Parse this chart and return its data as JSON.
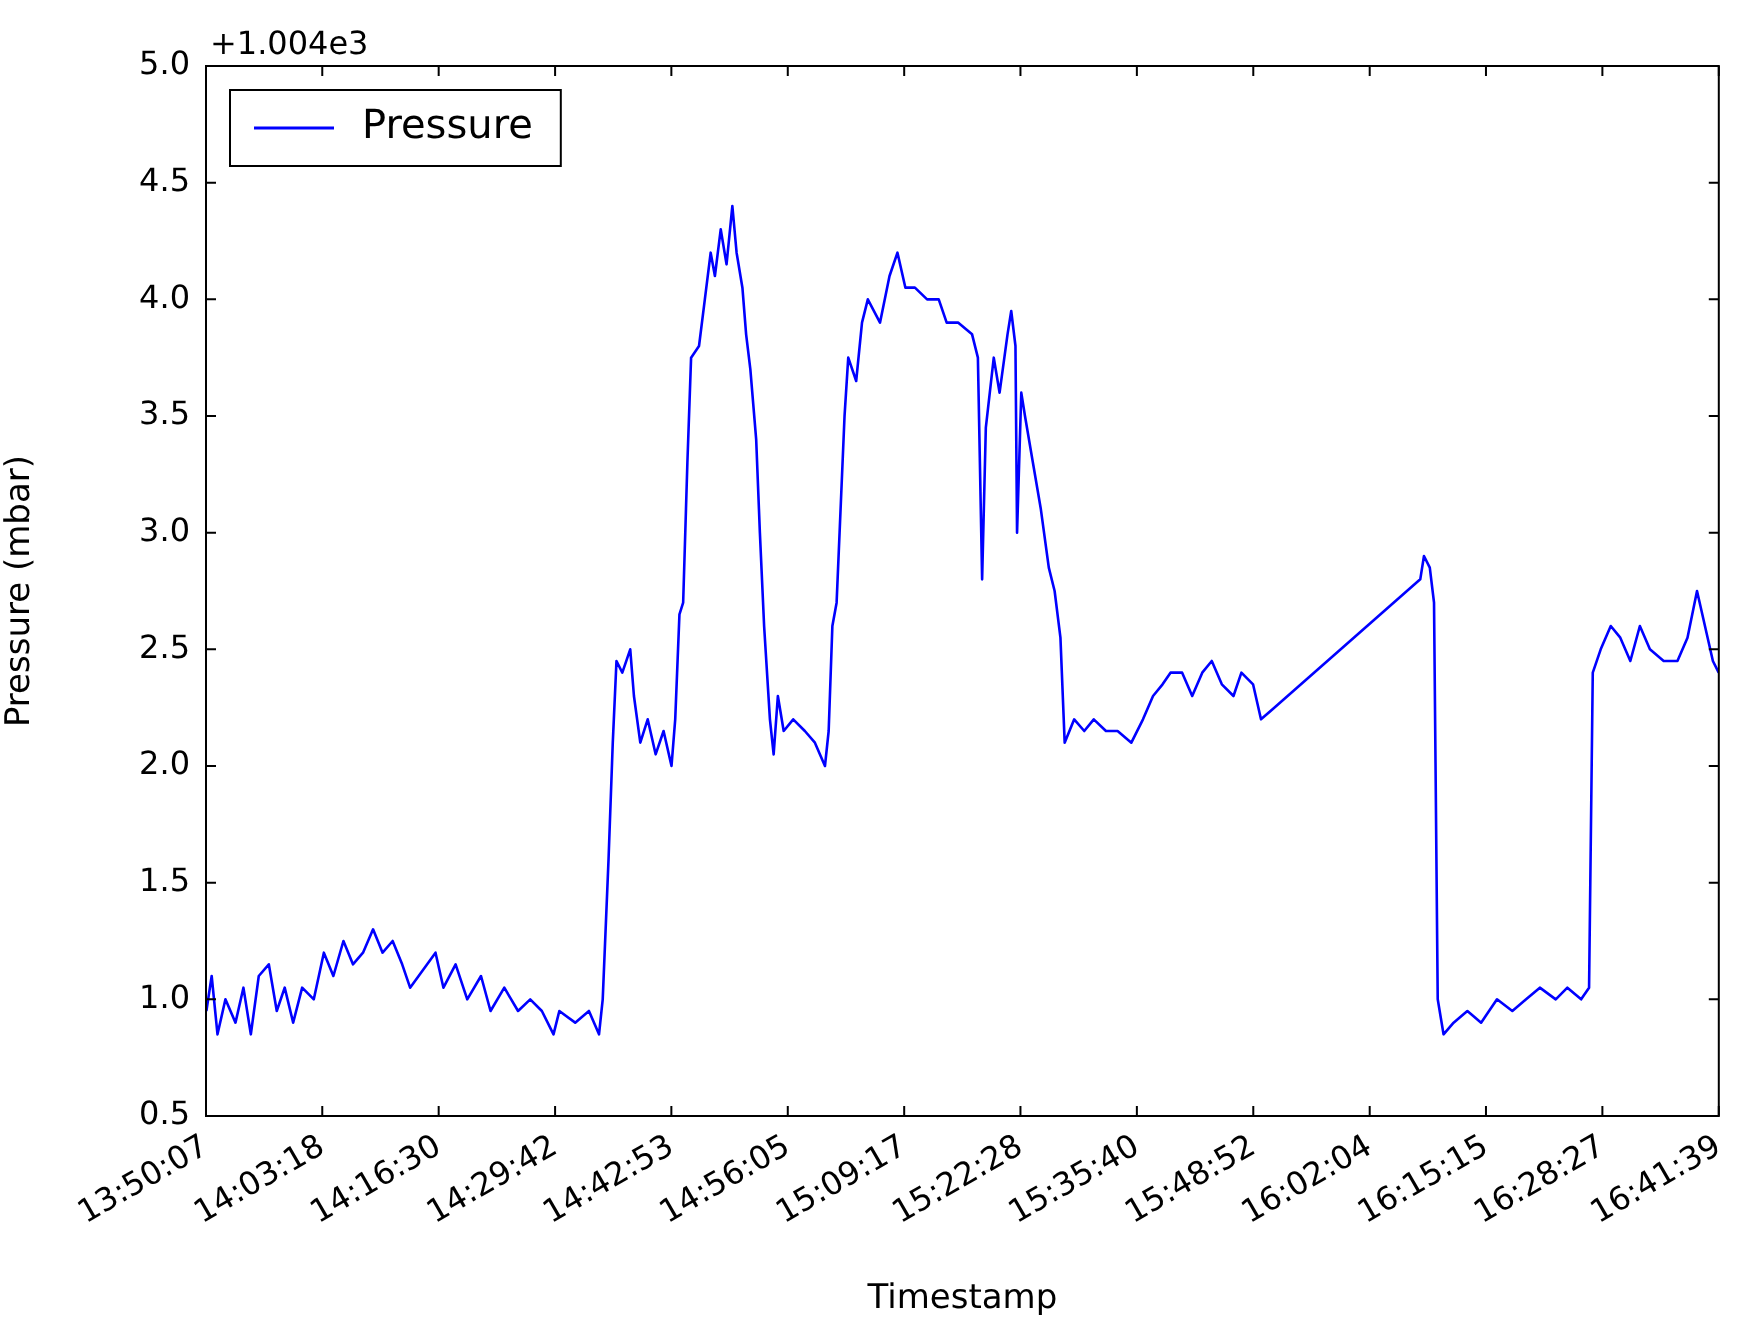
{
  "chart_data": {
    "type": "line",
    "xlabel": "Timestamp",
    "ylabel": "Pressure (mbar)",
    "annotations": [
      "+1.004e3"
    ],
    "xlim": [
      13.83528,
      16.69417
    ],
    "ylim": [
      0.5,
      5.0
    ],
    "xticks": [
      {
        "value": 13.83528,
        "label": "13:50:07"
      },
      {
        "value": 14.055,
        "label": "14:03:18"
      },
      {
        "value": 14.275,
        "label": "14:16:30"
      },
      {
        "value": 14.495,
        "label": "14:29:42"
      },
      {
        "value": 14.71472,
        "label": "14:42:53"
      },
      {
        "value": 14.93472,
        "label": "14:56:05"
      },
      {
        "value": 15.15472,
        "label": "15:09:17"
      },
      {
        "value": 15.37444,
        "label": "15:22:28"
      },
      {
        "value": 15.59444,
        "label": "15:35:40"
      },
      {
        "value": 15.81444,
        "label": "15:48:52"
      },
      {
        "value": 16.03444,
        "label": "16:02:04"
      },
      {
        "value": 16.25417,
        "label": "16:15:15"
      },
      {
        "value": 16.47417,
        "label": "16:28:27"
      },
      {
        "value": 16.69417,
        "label": "16:41:39"
      }
    ],
    "yticks": [
      {
        "value": 0.5,
        "label": "0.5"
      },
      {
        "value": 1,
        "label": "1.0"
      },
      {
        "value": 1.5,
        "label": "1.5"
      },
      {
        "value": 2,
        "label": "2.0"
      },
      {
        "value": 2.5,
        "label": "2.5"
      },
      {
        "value": 3,
        "label": "3.0"
      },
      {
        "value": 3.5,
        "label": "3.5"
      },
      {
        "value": 4,
        "label": "4.0"
      },
      {
        "value": 4.5,
        "label": "4.5"
      },
      {
        "value": 5,
        "label": "5.0"
      }
    ],
    "grid": false,
    "legend": "top left",
    "marker": "none",
    "line_style": "solid",
    "x": [
      13.836,
      13.846,
      13.857,
      13.872,
      13.891,
      13.906,
      13.92,
      13.935,
      13.954,
      13.969,
      13.984,
      14.0,
      14.017,
      14.039,
      14.058,
      14.076,
      14.095,
      14.113,
      14.132,
      14.151,
      14.169,
      14.188,
      14.206,
      14.221,
      14.269,
      14.284,
      14.307,
      14.329,
      14.355,
      14.373,
      14.399,
      14.425,
      14.448,
      14.47,
      14.492,
      14.503,
      14.533,
      14.559,
      14.578,
      14.585,
      14.596,
      14.604,
      14.611,
      14.622,
      14.637,
      14.644,
      14.656,
      14.67,
      14.685,
      14.7,
      14.715,
      14.722,
      14.73,
      14.737,
      14.745,
      14.752,
      14.767,
      14.778,
      14.789,
      14.797,
      14.808,
      14.819,
      14.83,
      14.838,
      14.849,
      14.856,
      14.864,
      14.875,
      14.882,
      14.89,
      14.901,
      14.908,
      14.916,
      14.927,
      14.945,
      14.967,
      14.986,
      15.005,
      15.012,
      15.019,
      15.027,
      15.042,
      15.049,
      15.064,
      15.075,
      15.086,
      15.109,
      15.127,
      15.142,
      15.157,
      15.175,
      15.198,
      15.22,
      15.235,
      15.257,
      15.283,
      15.294,
      15.302,
      15.309,
      15.324,
      15.335,
      15.35,
      15.357,
      15.365,
      15.368,
      15.376,
      15.383,
      15.398,
      15.413,
      15.428,
      15.439,
      15.45,
      15.458,
      15.476,
      15.495,
      15.513,
      15.536,
      15.558,
      15.584,
      15.606,
      15.625,
      15.643,
      15.658,
      15.68,
      15.699,
      15.718,
      15.736,
      15.755,
      15.777,
      15.792,
      15.814,
      15.829,
      16.13,
      16.137,
      16.148,
      16.156,
      16.163,
      16.174,
      16.193,
      16.219,
      16.245,
      16.275,
      16.304,
      16.33,
      16.356,
      16.386,
      16.408,
      16.434,
      16.449,
      16.456,
      16.471,
      16.49,
      16.508,
      16.527,
      16.545,
      16.564,
      16.59,
      16.616,
      16.635,
      16.653,
      16.668,
      16.683,
      16.694
    ],
    "series": [
      {
        "name": "Pressure",
        "color": "#0000ff",
        "values": [
          0.95,
          1.1,
          0.85,
          1.0,
          0.9,
          1.05,
          0.85,
          1.1,
          1.15,
          0.95,
          1.05,
          0.9,
          1.05,
          1.0,
          1.2,
          1.1,
          1.25,
          1.15,
          1.2,
          1.3,
          1.2,
          1.25,
          1.15,
          1.05,
          1.2,
          1.05,
          1.15,
          1.0,
          1.1,
          0.95,
          1.05,
          0.95,
          1.0,
          0.95,
          0.85,
          0.95,
          0.9,
          0.95,
          0.85,
          1.0,
          1.6,
          2.1,
          2.45,
          2.4,
          2.5,
          2.3,
          2.1,
          2.2,
          2.05,
          2.15,
          2.0,
          2.2,
          2.65,
          2.7,
          3.3,
          3.75,
          3.8,
          4.0,
          4.2,
          4.1,
          4.3,
          4.15,
          4.4,
          4.2,
          4.05,
          3.85,
          3.7,
          3.4,
          3.0,
          2.6,
          2.2,
          2.05,
          2.3,
          2.15,
          2.2,
          2.15,
          2.1,
          2.0,
          2.15,
          2.6,
          2.7,
          3.5,
          3.75,
          3.65,
          3.9,
          4.0,
          3.9,
          4.1,
          4.2,
          4.05,
          4.05,
          4.0,
          4.0,
          3.9,
          3.9,
          3.85,
          3.75,
          2.8,
          3.45,
          3.75,
          3.6,
          3.85,
          3.95,
          3.8,
          3.0,
          3.6,
          3.5,
          3.3,
          3.1,
          2.85,
          2.75,
          2.55,
          2.1,
          2.2,
          2.15,
          2.2,
          2.15,
          2.15,
          2.1,
          2.2,
          2.3,
          2.35,
          2.4,
          2.4,
          2.3,
          2.4,
          2.45,
          2.35,
          2.3,
          2.4,
          2.35,
          2.2,
          2.8,
          2.9,
          2.85,
          2.7,
          1.0,
          0.85,
          0.9,
          0.95,
          0.9,
          1.0,
          0.95,
          1.0,
          1.05,
          1.0,
          1.05,
          1.0,
          1.05,
          2.4,
          2.5,
          2.6,
          2.55,
          2.45,
          2.6,
          2.5,
          2.45,
          2.45,
          2.55,
          2.75,
          2.6,
          2.45,
          2.4
        ]
      }
    ]
  }
}
